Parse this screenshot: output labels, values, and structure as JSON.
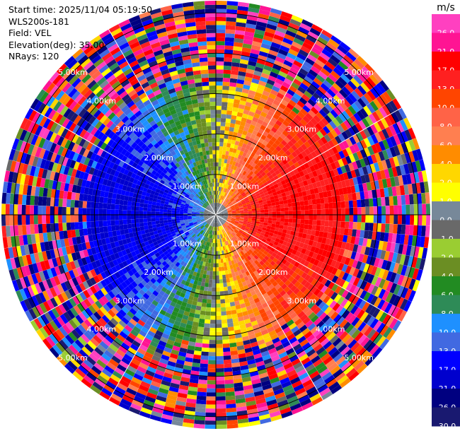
{
  "header": {
    "start_time": "Start time: 2025/11/04 05:19:50",
    "instrument": "WLS200s-181",
    "field": "Field: VEL",
    "elevation": "Elevation(deg): 35.00",
    "nrays": "NRays: 120"
  },
  "chart_data": {
    "type": "heatmap",
    "projection": "polar-ppi",
    "field": "VEL",
    "n_rays": 120,
    "elevation_deg": 35.0,
    "range_rings_km": [
      1.0,
      2.0,
      3.0,
      4.0,
      5.0
    ],
    "range_labels": [
      "1.00km",
      "2.00km",
      "3.00km",
      "4.00km",
      "5.00km"
    ],
    "max_range_km": 5.3,
    "valid_data_range_km": 3.2,
    "wind_pattern": "negative velocities on the west side, positive on the east side",
    "colorbar": {
      "unit": "m/s",
      "tick_labels": [
        "26.0",
        "21.0",
        "17.0",
        "13.0",
        "10.0",
        "8.0",
        "6.0",
        "4.0",
        "2.0",
        "1.0",
        "0.0",
        "-1.0",
        "-2.0",
        "-4.0",
        "-6.0",
        "-8.0",
        "-10.0",
        "-13.0",
        "-17.0",
        "-21.0",
        "-26.0",
        "-30.0"
      ],
      "colors": [
        "#ff40c0",
        "#ff1493",
        "#ff0000",
        "#ff2020",
        "#ff4500",
        "#ff6347",
        "#ff7f50",
        "#ff8c00",
        "#ffd700",
        "#ffff00",
        "#778899",
        "#696969",
        "#9acd32",
        "#6b8e23",
        "#228b22",
        "#2e8b57",
        "#1e90ff",
        "#4169e1",
        "#0000ff",
        "#0000cd",
        "#000080",
        "#191970"
      ]
    }
  }
}
